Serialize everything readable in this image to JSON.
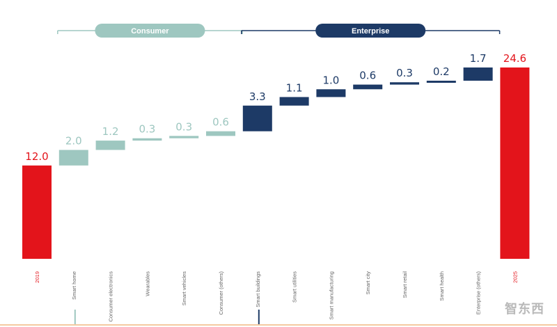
{
  "chart_data": {
    "type": "bar",
    "subtype": "waterfall",
    "categories": [
      "2019",
      "Smart home",
      "Consumer electronics",
      "Wearables",
      "Smart vehicles",
      "Consumer (others)",
      "Smart buildings",
      "Smart utilities",
      "Smart manufacturing",
      "Smart city",
      "Smart retail",
      "Smart health",
      "Enterprise (others)",
      "2025"
    ],
    "values": [
      12.0,
      2.0,
      1.2,
      0.3,
      0.3,
      0.6,
      3.3,
      1.1,
      1.0,
      0.6,
      0.3,
      0.2,
      1.7,
      24.6
    ],
    "value_labels": [
      "12.0",
      "2.0",
      "1.2",
      "0.3",
      "0.3",
      "0.6",
      "3.3",
      "1.1",
      "1.0",
      "0.6",
      "0.3",
      "0.2",
      "1.7",
      "24.6"
    ],
    "kinds": [
      "total",
      "consumer",
      "consumer",
      "consumer",
      "consumer",
      "consumer",
      "enterprise",
      "enterprise",
      "enterprise",
      "enterprise",
      "enterprise",
      "enterprise",
      "enterprise",
      "total"
    ],
    "groups": [
      {
        "label": "Consumer",
        "first_index": 1,
        "last_index": 5
      },
      {
        "label": "Enterprise",
        "first_index": 6,
        "last_index": 12
      }
    ],
    "title": "",
    "xlabel": "",
    "ylabel": "",
    "ylim": [
      0,
      24.6
    ],
    "grid": false,
    "legend": "none"
  },
  "colors": {
    "total": "#e3141b",
    "consumer": "#9ec7c0",
    "enterprise": "#1d3a66"
  },
  "watermark": "智东西"
}
